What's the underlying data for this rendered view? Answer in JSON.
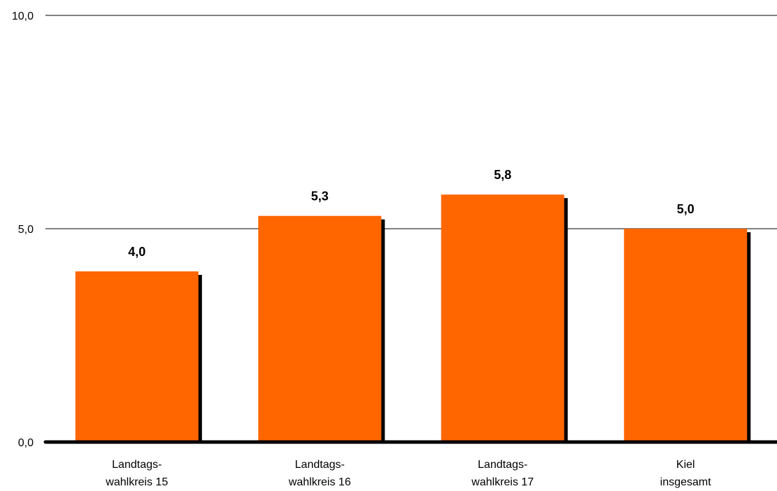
{
  "chart_data": {
    "type": "bar",
    "categories": [
      [
        "Landtags-",
        "wahlkreis 15"
      ],
      [
        "Landtags-",
        "wahlkreis 16"
      ],
      [
        "Landtags-",
        "wahlkreis 17"
      ],
      [
        "Kiel",
        "insgesamt"
      ]
    ],
    "values": [
      4.0,
      5.3,
      5.8,
      5.0
    ],
    "value_labels": [
      "4,0",
      "5,3",
      "5,8",
      "5,0"
    ],
    "yticks": [
      0,
      5,
      10
    ],
    "ytick_labels": [
      "0,0",
      "5,0",
      "10,0"
    ],
    "ylim": [
      0,
      10
    ],
    "grid": true,
    "colors": {
      "bar": "#FF6600",
      "shadow": "#000000",
      "gridline": "#000000",
      "baseline": "#000000"
    }
  }
}
